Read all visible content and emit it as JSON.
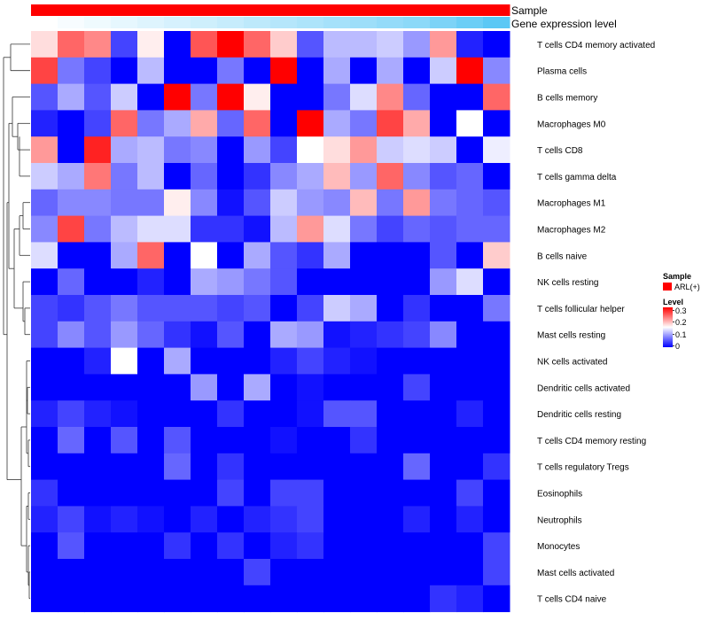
{
  "chart_data": {
    "type": "heatmap",
    "annotation_rows": [
      {
        "name": "Sample",
        "label": "Sample",
        "color": "#ff0000"
      },
      {
        "name": "Gene expression level",
        "label": "Gene expression level",
        "color_low": "#ffffff",
        "color_high": "#5bc8f5"
      }
    ],
    "rows": [
      "T cells CD4 memory activated",
      "Plasma cells",
      "B cells memory",
      "Macrophages M0",
      "T cells CD8",
      "T cells gamma delta",
      "Macrophages M1",
      "Macrophages M2",
      "B cells naive",
      "NK cells resting",
      "T cells follicular helper",
      "Mast cells resting",
      "NK cells activated",
      "Dendritic cells activated",
      "Dendritic cells resting",
      "T cells CD4 memory resting",
      "T cells regulatory  Tregs",
      "Eosinophils",
      "Neutrophils",
      "Monocytes",
      "Mast cells activated",
      "T cells CD4 naive"
    ],
    "num_columns": 18,
    "values": [
      [
        0.17,
        0.24,
        0.22,
        0.04,
        0.16,
        0.0,
        0.25,
        0.3,
        0.24,
        0.18,
        0.05,
        0.11,
        0.11,
        0.12,
        0.09,
        0.21,
        0.02,
        0.0
      ],
      [
        0.26,
        0.07,
        0.04,
        0.0,
        0.11,
        0.0,
        0.0,
        0.07,
        0.0,
        0.3,
        0.0,
        0.1,
        0.0,
        0.1,
        0.0,
        0.12,
        0.3,
        0.08
      ],
      [
        0.05,
        0.1,
        0.05,
        0.12,
        0.0,
        0.3,
        0.07,
        0.3,
        0.16,
        0.0,
        0.0,
        0.07,
        0.13,
        0.22,
        0.06,
        0.0,
        0.0,
        0.24
      ],
      [
        0.02,
        0.0,
        0.04,
        0.24,
        0.07,
        0.1,
        0.2,
        0.06,
        0.24,
        0.0,
        0.3,
        0.1,
        0.07,
        0.26,
        0.2,
        0.0,
        0.15,
        0.0
      ],
      [
        0.21,
        0.0,
        0.28,
        0.1,
        0.11,
        0.07,
        0.08,
        0.0,
        0.09,
        0.04,
        0.15,
        0.17,
        0.21,
        0.12,
        0.13,
        0.12,
        0.0,
        0.14
      ],
      [
        0.12,
        0.1,
        0.23,
        0.07,
        0.11,
        0.0,
        0.06,
        0.0,
        0.03,
        0.08,
        0.1,
        0.19,
        0.09,
        0.24,
        0.08,
        0.05,
        0.06,
        0.0
      ],
      [
        0.06,
        0.08,
        0.08,
        0.07,
        0.07,
        0.16,
        0.08,
        0.01,
        0.05,
        0.12,
        0.09,
        0.08,
        0.19,
        0.07,
        0.21,
        0.07,
        0.06,
        0.05
      ],
      [
        0.08,
        0.26,
        0.07,
        0.11,
        0.13,
        0.13,
        0.03,
        0.03,
        0.01,
        0.11,
        0.21,
        0.13,
        0.07,
        0.04,
        0.06,
        0.05,
        0.06,
        0.06
      ],
      [
        0.13,
        0.0,
        0.0,
        0.1,
        0.24,
        0.0,
        0.15,
        0.0,
        0.1,
        0.05,
        0.03,
        0.1,
        0.0,
        0.0,
        0.0,
        0.05,
        0.0,
        0.18
      ],
      [
        0.0,
        0.06,
        0.0,
        0.0,
        0.02,
        0.0,
        0.1,
        0.09,
        0.07,
        0.05,
        0.0,
        0.0,
        0.0,
        0.0,
        0.0,
        0.09,
        0.13,
        0.0
      ],
      [
        0.04,
        0.03,
        0.05,
        0.07,
        0.05,
        0.05,
        0.05,
        0.04,
        0.05,
        0.0,
        0.04,
        0.12,
        0.1,
        0.0,
        0.03,
        0.0,
        0.0,
        0.07
      ],
      [
        0.04,
        0.08,
        0.05,
        0.09,
        0.06,
        0.03,
        0.01,
        0.05,
        0.0,
        0.1,
        0.09,
        0.01,
        0.02,
        0.03,
        0.04,
        0.08,
        0.0,
        0.0
      ],
      [
        0.0,
        0.0,
        0.02,
        0.15,
        0.0,
        0.1,
        0.0,
        0.0,
        0.0,
        0.02,
        0.04,
        0.02,
        0.01,
        0.0,
        0.0,
        0.0,
        0.0,
        0.0
      ],
      [
        0.0,
        0.0,
        0.0,
        0.0,
        0.0,
        0.0,
        0.09,
        0.0,
        0.1,
        0.0,
        0.01,
        0.0,
        0.0,
        0.0,
        0.04,
        0.0,
        0.0,
        0.0
      ],
      [
        0.02,
        0.04,
        0.02,
        0.01,
        0.0,
        0.0,
        0.0,
        0.03,
        0.0,
        0.0,
        0.01,
        0.05,
        0.05,
        0.0,
        0.0,
        0.0,
        0.02,
        0.0
      ],
      [
        0.0,
        0.06,
        0.0,
        0.05,
        0.0,
        0.05,
        0.0,
        0.0,
        0.0,
        0.01,
        0.0,
        0.0,
        0.03,
        0.0,
        0.0,
        0.0,
        0.0,
        0.0
      ],
      [
        0.0,
        0.0,
        0.0,
        0.0,
        0.0,
        0.06,
        0.0,
        0.03,
        0.0,
        0.0,
        0.0,
        0.0,
        0.0,
        0.0,
        0.06,
        0.0,
        0.0,
        0.03
      ],
      [
        0.03,
        0.0,
        0.0,
        0.0,
        0.0,
        0.0,
        0.0,
        0.04,
        0.0,
        0.04,
        0.04,
        0.0,
        0.0,
        0.0,
        0.0,
        0.0,
        0.04,
        0.0
      ],
      [
        0.02,
        0.04,
        0.01,
        0.02,
        0.01,
        0.0,
        0.02,
        0.0,
        0.02,
        0.03,
        0.04,
        0.0,
        0.0,
        0.0,
        0.02,
        0.0,
        0.02,
        0.0
      ],
      [
        0.0,
        0.05,
        0.0,
        0.0,
        0.0,
        0.03,
        0.0,
        0.03,
        0.0,
        0.02,
        0.03,
        0.0,
        0.0,
        0.0,
        0.0,
        0.0,
        0.0,
        0.04
      ],
      [
        0.0,
        0.0,
        0.0,
        0.0,
        0.0,
        0.0,
        0.0,
        0.0,
        0.04,
        0.0,
        0.0,
        0.0,
        0.0,
        0.0,
        0.0,
        0.0,
        0.0,
        0.04
      ],
      [
        0.0,
        0.0,
        0.0,
        0.0,
        0.0,
        0.0,
        0.0,
        0.0,
        0.0,
        0.0,
        0.0,
        0.0,
        0.0,
        0.0,
        0.0,
        0.03,
        0.02,
        0.0
      ]
    ],
    "gene_expression_level": [
      0.0,
      0.05,
      0.1,
      0.15,
      0.2,
      0.25,
      0.3,
      0.35,
      0.4,
      0.45,
      0.5,
      0.55,
      0.6,
      0.65,
      0.7,
      0.8,
      0.9,
      1.0
    ],
    "color_scale": {
      "low": "#0000ff",
      "mid": "#ffffff",
      "high": "#ff0000",
      "domain": [
        0,
        0.15,
        0.3
      ]
    },
    "legend": {
      "sample_title": "Sample",
      "sample_entry": "ARL(+)",
      "level_title": "Level",
      "level_ticks": [
        "0.3",
        "0.2",
        "0.1",
        "0"
      ]
    }
  }
}
